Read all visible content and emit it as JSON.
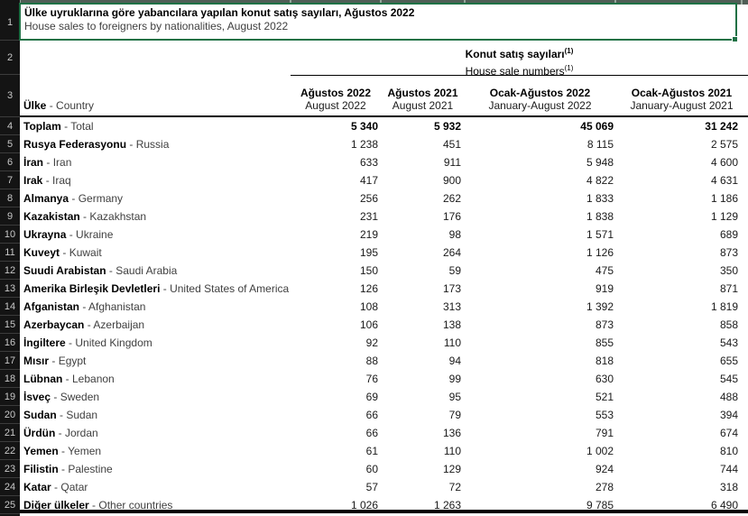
{
  "title": {
    "tr": "Ülke uyruklarına göre yabancılara yapılan konut satış sayıları, Ağustos 2022",
    "en": "House sales to foreigners by nationalities, August 2022"
  },
  "group_header": {
    "tr": "Konut satış sayıları",
    "en": "House sale numbers",
    "footnote": "(1)"
  },
  "columns": [
    {
      "tr": "Ağustos 2022",
      "en": "August 2022"
    },
    {
      "tr": "Ağustos 2021",
      "en": "August 2021"
    },
    {
      "tr": "Ocak-Ağustos 2022",
      "en": "January-August 2022"
    },
    {
      "tr": "Ocak-Ağustos 2021",
      "en": "January-August 2021"
    }
  ],
  "row_header": {
    "tr": "Ülke",
    "en": "Country"
  },
  "separator": " - ",
  "row_numbers": [
    "1",
    "2",
    "3",
    "4",
    "5",
    "6",
    "7",
    "8",
    "9",
    "10",
    "11",
    "12",
    "13",
    "14",
    "15",
    "16",
    "17",
    "18",
    "19",
    "20",
    "21",
    "22",
    "23",
    "24",
    "25"
  ],
  "rows": [
    {
      "tr": "Toplam",
      "en": "Total",
      "total": true,
      "values": [
        "5 340",
        "5 932",
        "45 069",
        "31 242"
      ]
    },
    {
      "tr": "Rusya Federasyonu",
      "en": "Russia",
      "values": [
        "1 238",
        "451",
        "8 115",
        "2 575"
      ]
    },
    {
      "tr": "İran",
      "en": "Iran",
      "values": [
        "633",
        "911",
        "5 948",
        "4 600"
      ]
    },
    {
      "tr": "Irak",
      "en": "Iraq",
      "values": [
        "417",
        "900",
        "4 822",
        "4 631"
      ]
    },
    {
      "tr": "Almanya",
      "en": "Germany",
      "values": [
        "256",
        "262",
        "1 833",
        "1 186"
      ]
    },
    {
      "tr": "Kazakistan",
      "en": "Kazakhstan",
      "values": [
        "231",
        "176",
        "1 838",
        "1 129"
      ]
    },
    {
      "tr": "Ukrayna",
      "en": "Ukraine",
      "values": [
        "219",
        "98",
        "1 571",
        "689"
      ]
    },
    {
      "tr": "Kuveyt",
      "en": "Kuwait",
      "values": [
        "195",
        "264",
        "1 126",
        "873"
      ]
    },
    {
      "tr": "Suudi Arabistan",
      "en": "Saudi Arabia",
      "values": [
        "150",
        "59",
        "475",
        "350"
      ]
    },
    {
      "tr": "Amerika Birleşik Devletleri",
      "en": "United States of America",
      "values": [
        "126",
        "173",
        "919",
        "871"
      ]
    },
    {
      "tr": "Afganistan",
      "en": "Afghanistan",
      "values": [
        "108",
        "313",
        "1 392",
        "1 819"
      ]
    },
    {
      "tr": "Azerbaycan",
      "en": "Azerbaijan",
      "values": [
        "106",
        "138",
        "873",
        "858"
      ]
    },
    {
      "tr": "İngiltere",
      "en": "United Kingdom",
      "values": [
        "92",
        "110",
        "855",
        "543"
      ]
    },
    {
      "tr": "Mısır",
      "en": "Egypt",
      "values": [
        "88",
        "94",
        "818",
        "655"
      ]
    },
    {
      "tr": "Lübnan",
      "en": "Lebanon",
      "values": [
        "76",
        "99",
        "630",
        "545"
      ]
    },
    {
      "tr": "İsveç",
      "en": "Sweden",
      "values": [
        "69",
        "95",
        "521",
        "488"
      ]
    },
    {
      "tr": "Sudan",
      "en": "Sudan",
      "values": [
        "66",
        "79",
        "553",
        "394"
      ]
    },
    {
      "tr": "Ürdün",
      "en": "Jordan",
      "values": [
        "66",
        "136",
        "791",
        "674"
      ]
    },
    {
      "tr": "Yemen",
      "en": "Yemen",
      "values": [
        "61",
        "110",
        "1 002",
        "810"
      ]
    },
    {
      "tr": "Filistin",
      "en": "Palestine",
      "values": [
        "60",
        "129",
        "924",
        "744"
      ]
    },
    {
      "tr": "Katar",
      "en": "Qatar",
      "values": [
        "57",
        "72",
        "278",
        "318"
      ]
    },
    {
      "tr": "Diğer ülkeler",
      "en": "Other countries",
      "values": [
        "1 026",
        "1 263",
        "9 785",
        "6 490"
      ]
    }
  ],
  "colors": {
    "selection_green": "#1E7145",
    "row_header_bg": "#141414",
    "row_header_text": "#C9C9C9",
    "strip_bg": "#505E56",
    "rule_black": "#000000"
  }
}
